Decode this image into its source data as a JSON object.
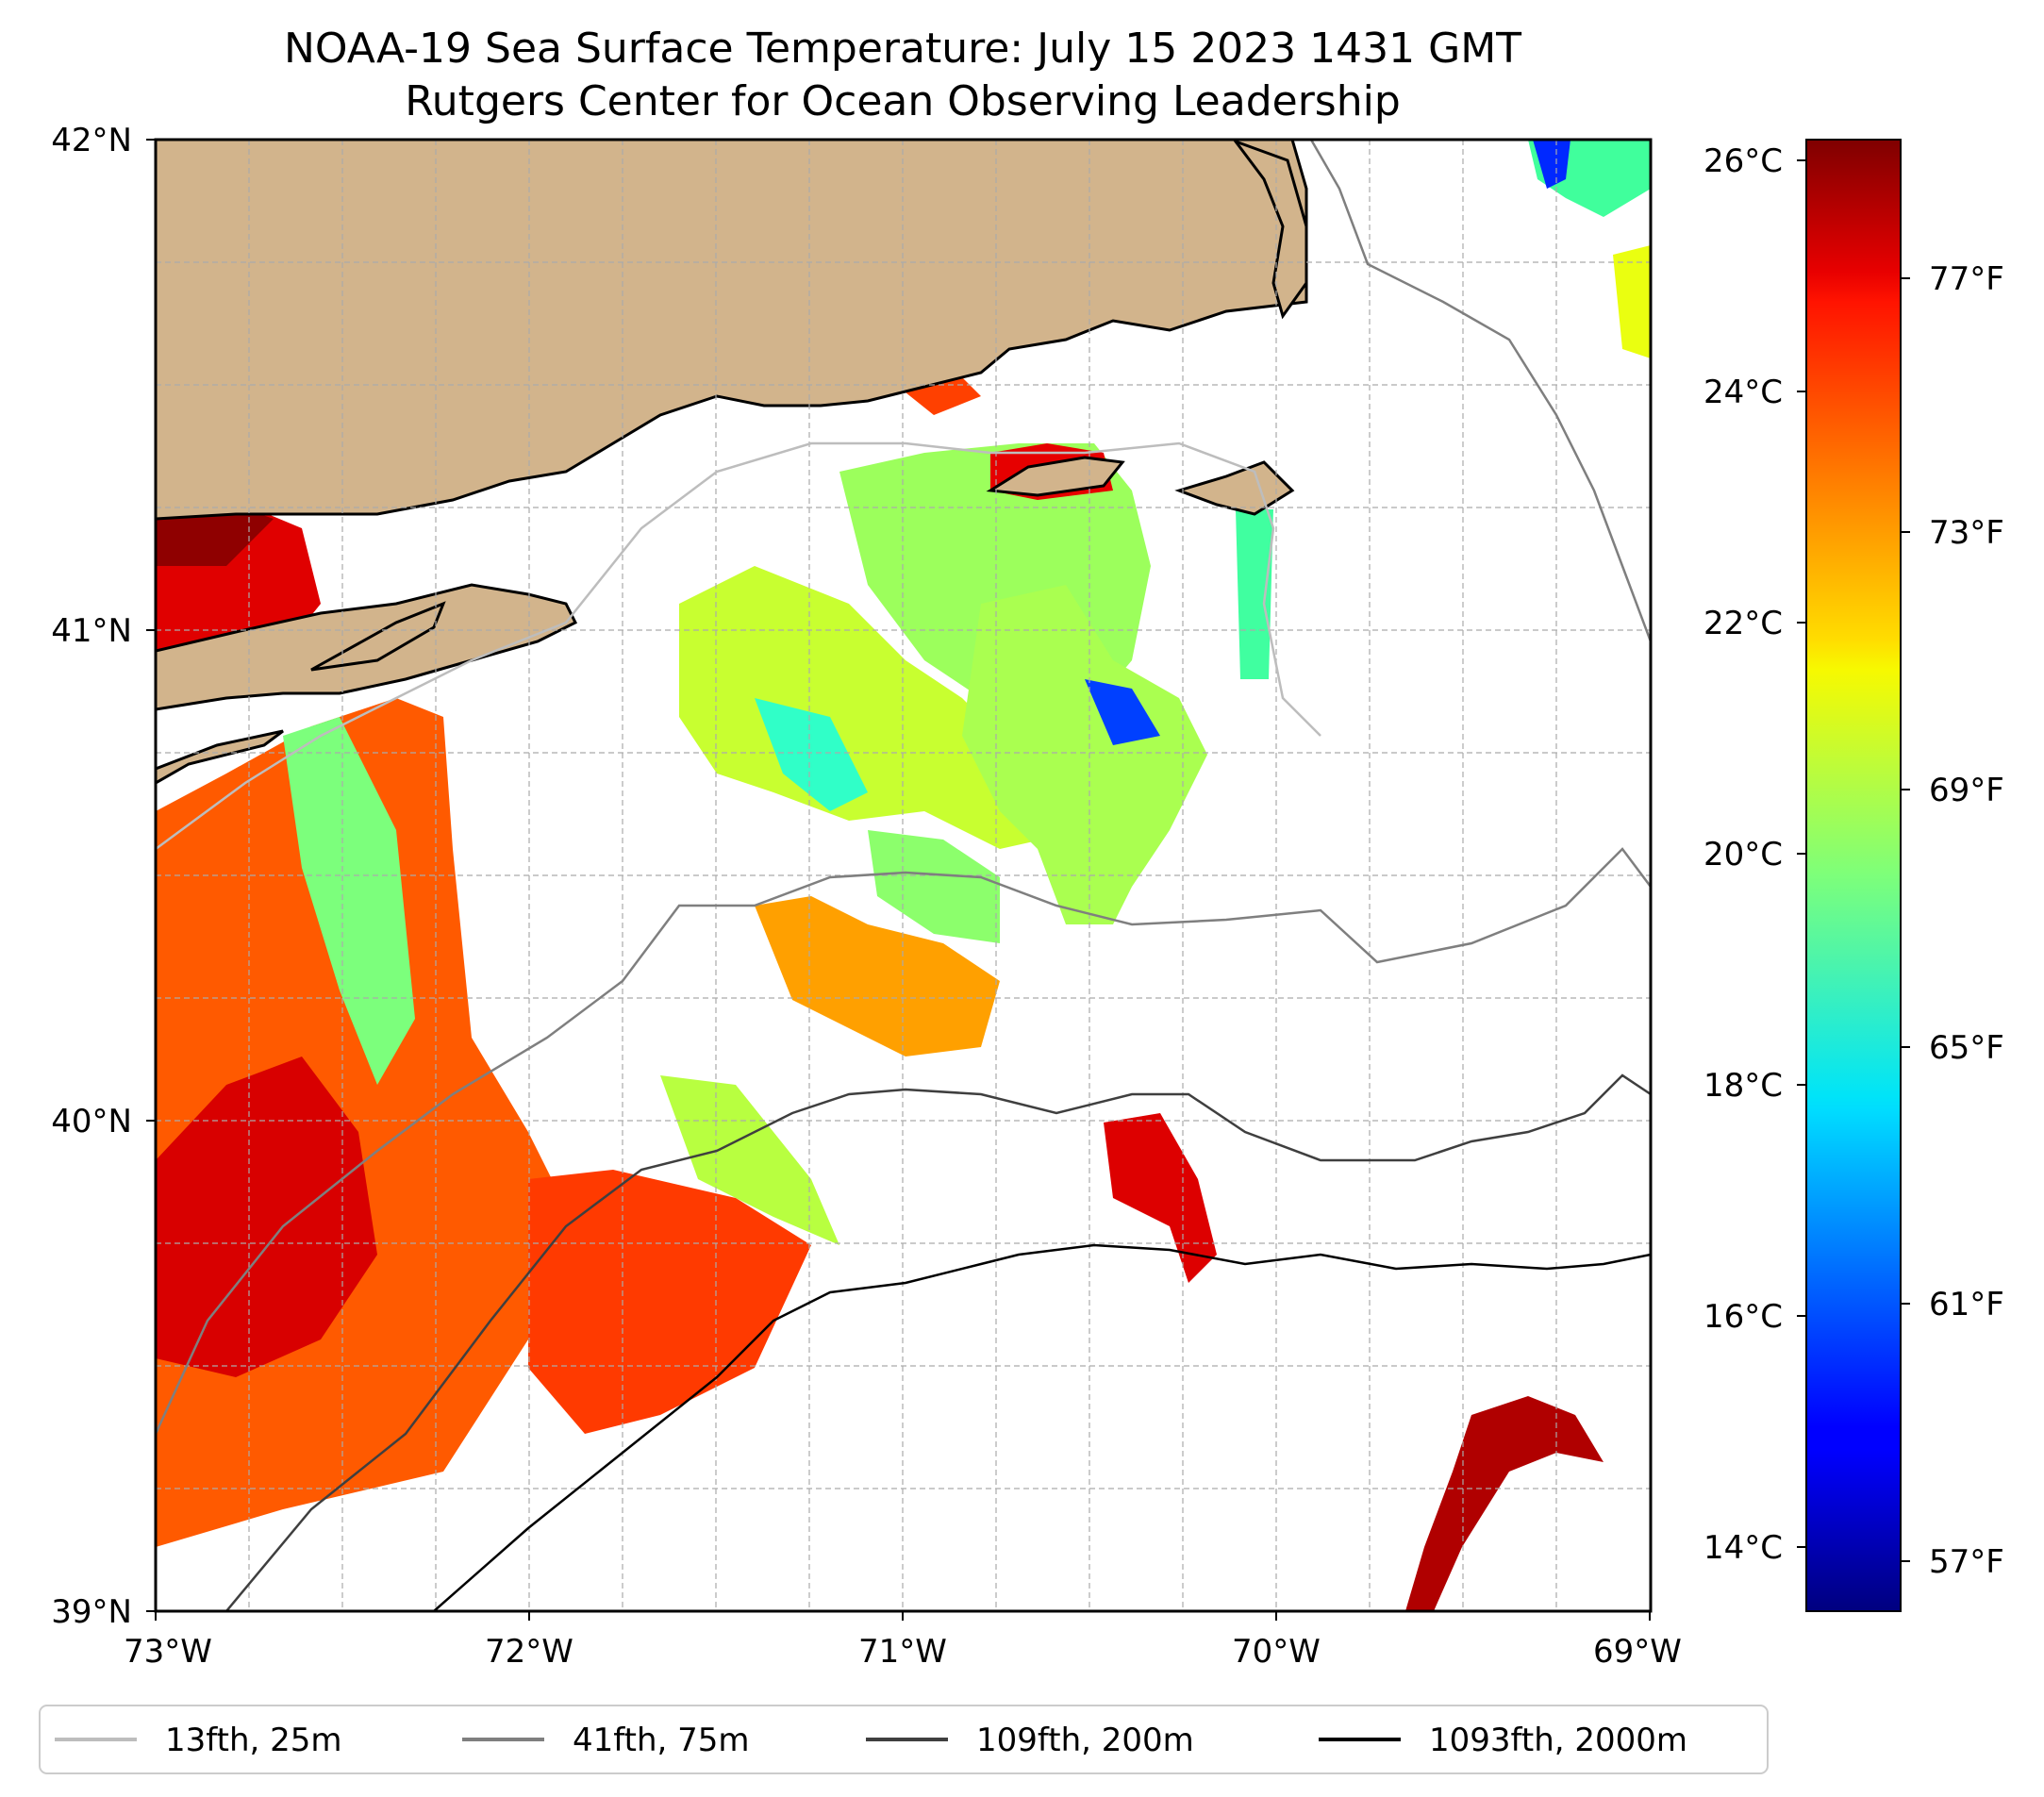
{
  "map": {
    "title_line1": "NOAA-19 Sea Surface Temperature: July 15 2023 1431 GMT",
    "title_line2": "Rutgers Center for Ocean Observing Leadership",
    "extent": {
      "lon_min": -73,
      "lon_max": -69,
      "lat_min": 39,
      "lat_max": 42
    },
    "lat_ticks": [
      {
        "value": 42,
        "label": "42°N"
      },
      {
        "value": 41,
        "label": "41°N"
      },
      {
        "value": 40,
        "label": "40°N"
      },
      {
        "value": 39,
        "label": "39°N"
      }
    ],
    "lon_ticks": [
      {
        "value": -73,
        "label": "73°W"
      },
      {
        "value": -72,
        "label": "72°W"
      },
      {
        "value": -71,
        "label": "71°W"
      },
      {
        "value": -70,
        "label": "70°W"
      },
      {
        "value": -69,
        "label": "69°W"
      }
    ],
    "land_color": "#d2b48c",
    "sst_range_c": [
      13.5,
      26.2
    ],
    "colormap": "jet"
  },
  "colorbar": {
    "celsius_ticks": [
      {
        "value": 26,
        "label": "26°C"
      },
      {
        "value": 24,
        "label": "24°C"
      },
      {
        "value": 22,
        "label": "22°C"
      },
      {
        "value": 20,
        "label": "20°C"
      },
      {
        "value": 18,
        "label": "18°C"
      },
      {
        "value": 16,
        "label": "16°C"
      },
      {
        "value": 14,
        "label": "14°C"
      }
    ],
    "fahrenheit_ticks": [
      {
        "value": 77,
        "label": "77°F"
      },
      {
        "value": 73,
        "label": "73°F"
      },
      {
        "value": 69,
        "label": "69°F"
      },
      {
        "value": 65,
        "label": "65°F"
      },
      {
        "value": 61,
        "label": "61°F"
      },
      {
        "value": 57,
        "label": "57°F"
      }
    ]
  },
  "legend": {
    "items": [
      {
        "label": "13fth, 25m",
        "color": "#bdbdbd"
      },
      {
        "label": "41fth, 75m",
        "color": "#7f7f7f"
      },
      {
        "label": "109fth, 200m",
        "color": "#3f3f3f"
      },
      {
        "label": "1093fth, 2000m",
        "color": "#000000"
      }
    ]
  }
}
